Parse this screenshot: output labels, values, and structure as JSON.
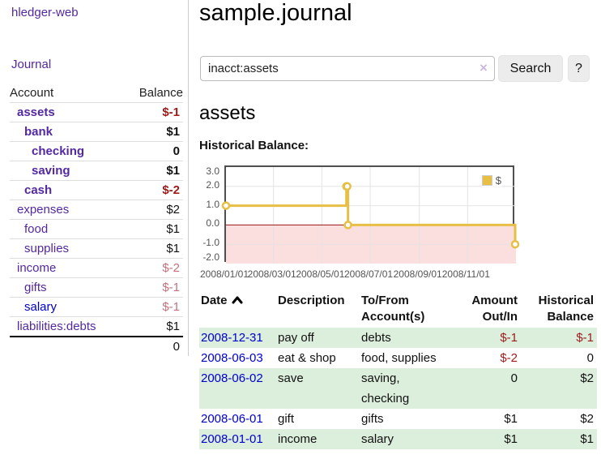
{
  "sidebar": {
    "brand": "hledger-web",
    "journal_link": "Journal",
    "accounts_table": {
      "col_account": "Account",
      "col_balance": "Balance",
      "rows": [
        {
          "name": "assets",
          "balance": "$-1",
          "depth": 0,
          "bold": true,
          "neg": "strong"
        },
        {
          "name": "bank",
          "balance": "$1",
          "depth": 1,
          "bold": true,
          "neg": "none"
        },
        {
          "name": "checking",
          "balance": "0",
          "depth": 2,
          "bold": true,
          "neg": "none"
        },
        {
          "name": "saving",
          "balance": "$1",
          "depth": 2,
          "bold": true,
          "neg": "none"
        },
        {
          "name": "cash",
          "balance": "$-2",
          "depth": 1,
          "bold": true,
          "neg": "strong"
        },
        {
          "name": "expenses",
          "balance": "$2",
          "depth": 0,
          "bold": false,
          "neg": "none"
        },
        {
          "name": "food",
          "balance": "$1",
          "depth": 1,
          "bold": false,
          "neg": "none"
        },
        {
          "name": "supplies",
          "balance": "$1",
          "depth": 1,
          "bold": false,
          "neg": "none"
        },
        {
          "name": "income",
          "balance": "$-2",
          "depth": 0,
          "bold": false,
          "neg": "soft"
        },
        {
          "name": "gifts",
          "balance": "$-1",
          "depth": 1,
          "bold": false,
          "neg": "soft"
        },
        {
          "name": "salary",
          "balance": "$-1",
          "depth": 1,
          "bold": false,
          "neg": "soft",
          "blue": true
        },
        {
          "name": "liabilities:debts",
          "balance": "$1",
          "depth": 0,
          "bold": false,
          "neg": "none"
        }
      ],
      "total": "0"
    }
  },
  "header": {
    "title": "sample.journal"
  },
  "search": {
    "value": "inacct:assets",
    "clear_icon": "×",
    "button_label": "Search",
    "help_label": "?"
  },
  "account_page": {
    "heading": "assets",
    "chart_label": "Historical Balance:"
  },
  "chart_data": {
    "type": "line",
    "style": "steps",
    "title": "Historical Balance:",
    "legend": "$",
    "legend_position": "top-right",
    "grid": true,
    "xlim": [
      "2008-01-01",
      "2009-01-01"
    ],
    "ylim": [
      -2.0,
      3.0
    ],
    "yticks": [
      {
        "label": "3.0",
        "value": 3
      },
      {
        "label": "2.0",
        "value": 2
      },
      {
        "label": "1.0",
        "value": 1
      },
      {
        "label": "0.0",
        "value": 0
      },
      {
        "label": "-1.0",
        "value": -1
      },
      {
        "label": "-2.0",
        "value": -2
      }
    ],
    "xticks": [
      {
        "label": "2008/01/01",
        "date": "2008-01-01"
      },
      {
        "label": "2008/03/01",
        "date": "2008-03-01"
      },
      {
        "label": "2008/05/01",
        "date": "2008-05-01"
      },
      {
        "label": "2008/07/01",
        "date": "2008-07-01"
      },
      {
        "label": "2008/09/01",
        "date": "2008-09-01"
      },
      {
        "label": "2008/11/01",
        "date": "2008-11-01"
      }
    ],
    "series": [
      {
        "name": "$",
        "color": "#e8bf45",
        "points": [
          {
            "date": "2008-01-01",
            "value": 1
          },
          {
            "date": "2008-06-01",
            "value": 2
          },
          {
            "date": "2008-06-02",
            "value": 2
          },
          {
            "date": "2008-06-03",
            "value": 0
          },
          {
            "date": "2008-12-31",
            "value": -1
          }
        ]
      }
    ],
    "zero_line_color": "#991414",
    "negative_region_color": "#fbdede"
  },
  "register_table": {
    "headers": {
      "date": "Date",
      "description": "Description",
      "tofrom": "To/From Account(s)",
      "amount": "Amount Out/In",
      "balance": "Historical Balance"
    },
    "rows": [
      {
        "date": "2008-12-31",
        "description": "pay off",
        "tofrom": "debts",
        "amount": "$-1",
        "balance": "$-1",
        "amount_neg": true,
        "balance_neg": true
      },
      {
        "date": "2008-06-03",
        "description": "eat & shop",
        "tofrom": "food, supplies",
        "amount": "$-2",
        "balance": "0",
        "amount_neg": true,
        "balance_neg": false
      },
      {
        "date": "2008-06-02",
        "description": "save",
        "tofrom": "saving,\nchecking",
        "amount": "0",
        "balance": "$2",
        "amount_neg": false,
        "balance_neg": false
      },
      {
        "date": "2008-06-01",
        "description": "gift",
        "tofrom": "gifts",
        "amount": "$1",
        "balance": "$2",
        "amount_neg": false,
        "balance_neg": false
      },
      {
        "date": "2008-01-01",
        "description": "income",
        "tofrom": "salary",
        "amount": "$1",
        "balance": "$1",
        "amount_neg": false,
        "balance_neg": false
      }
    ]
  }
}
